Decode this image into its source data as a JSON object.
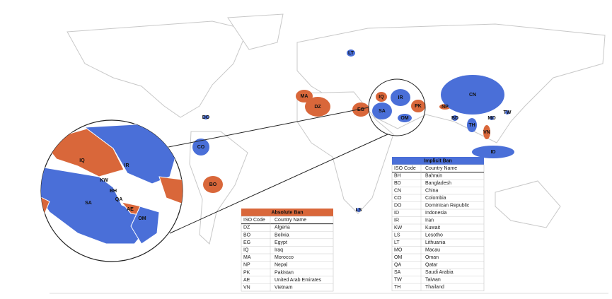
{
  "map_labels": [
    "LT",
    "MA",
    "DZ",
    "EG",
    "IQ",
    "IR",
    "SA",
    "OM",
    "PK",
    "NP",
    "CN",
    "MO",
    "TW",
    "BD",
    "TH",
    "VN",
    "ID",
    "DO",
    "CO",
    "BO",
    "LS"
  ],
  "inset_labels": [
    "IQ",
    "IR",
    "KW",
    "BH",
    "QA",
    "SA",
    "AE",
    "OM"
  ],
  "absolute_ban": {
    "title": "Absolute Ban",
    "header": [
      "ISO Code",
      "Country Name"
    ],
    "rows": [
      [
        "DZ",
        "Algeria"
      ],
      [
        "BO",
        "Bolivia"
      ],
      [
        "EG",
        "Egypt"
      ],
      [
        "IQ",
        "Iraq"
      ],
      [
        "MA",
        "Morocco"
      ],
      [
        "NP",
        "Nepal"
      ],
      [
        "PK",
        "Pakistan"
      ],
      [
        "AE",
        "United Arab Emirates"
      ],
      [
        "VN",
        "Vietnam"
      ]
    ]
  },
  "implicit_ban": {
    "title": "Implicit Ban",
    "header": [
      "ISO Code",
      "Country Name"
    ],
    "rows": [
      [
        "BH",
        "Bahrain"
      ],
      [
        "BD",
        "Bangladesh"
      ],
      [
        "CN",
        "China"
      ],
      [
        "CO",
        "Colombia"
      ],
      [
        "DO",
        "Dominican Republic"
      ],
      [
        "ID",
        "Indonesia"
      ],
      [
        "IR",
        "Iran"
      ],
      [
        "KW",
        "Kuwait"
      ],
      [
        "LS",
        "Lesotho"
      ],
      [
        "LT",
        "Lithuania"
      ],
      [
        "MO",
        "Macau"
      ],
      [
        "OM",
        "Oman"
      ],
      [
        "QA",
        "Qatar"
      ],
      [
        "SA",
        "Saudi Arabia"
      ],
      [
        "TW",
        "Taiwan"
      ],
      [
        "TH",
        "Thailand"
      ]
    ]
  }
}
